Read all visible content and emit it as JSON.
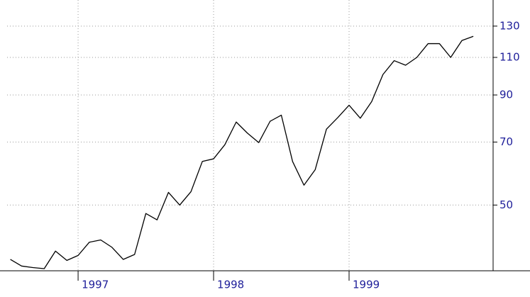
{
  "chart_data": {
    "type": "line",
    "log_y": true,
    "grid": true,
    "y_axis_side": "right",
    "x": [
      1996.5,
      1996.583,
      1996.667,
      1996.75,
      1996.833,
      1996.917,
      1997,
      1997.083,
      1997.167,
      1997.25,
      1997.333,
      1997.417,
      1997.5,
      1997.583,
      1997.667,
      1997.75,
      1997.833,
      1997.917,
      1998,
      1998.083,
      1998.167,
      1998.25,
      1998.333,
      1998.417,
      1998.5,
      1998.583,
      1998.667,
      1998.75,
      1998.833,
      1998.917,
      1999,
      1999.083,
      1999.167,
      1999.25,
      1999.333,
      1999.417,
      1999.5,
      1999.583,
      1999.667,
      1999.75,
      1999.833,
      1999.917
    ],
    "series": [
      {
        "color": "#000000",
        "values": [
          37.4,
          36.1,
          35.8,
          35.6,
          39.1,
          37.2,
          38.2,
          41.0,
          41.5,
          39.9,
          37.4,
          38.4,
          47.8,
          46.2,
          53.5,
          50.0,
          53.7,
          63.1,
          64.0,
          69.0,
          77.9,
          73.4,
          69.8,
          78.2,
          80.8,
          63.1,
          55.6,
          60.4,
          75.0,
          79.8,
          85.2,
          79.5,
          86.9,
          100.4,
          108.1,
          105.5,
          110.0,
          118.4,
          118.4,
          110.0,
          120.4,
          123.1
        ]
      }
    ],
    "xlim": [
      1996.476,
      2000.063
    ],
    "xticks": [
      1997,
      1998,
      1999
    ],
    "ylim": [
      35.2,
      145
    ],
    "yticks": [
      50,
      70,
      90,
      110,
      130
    ]
  }
}
